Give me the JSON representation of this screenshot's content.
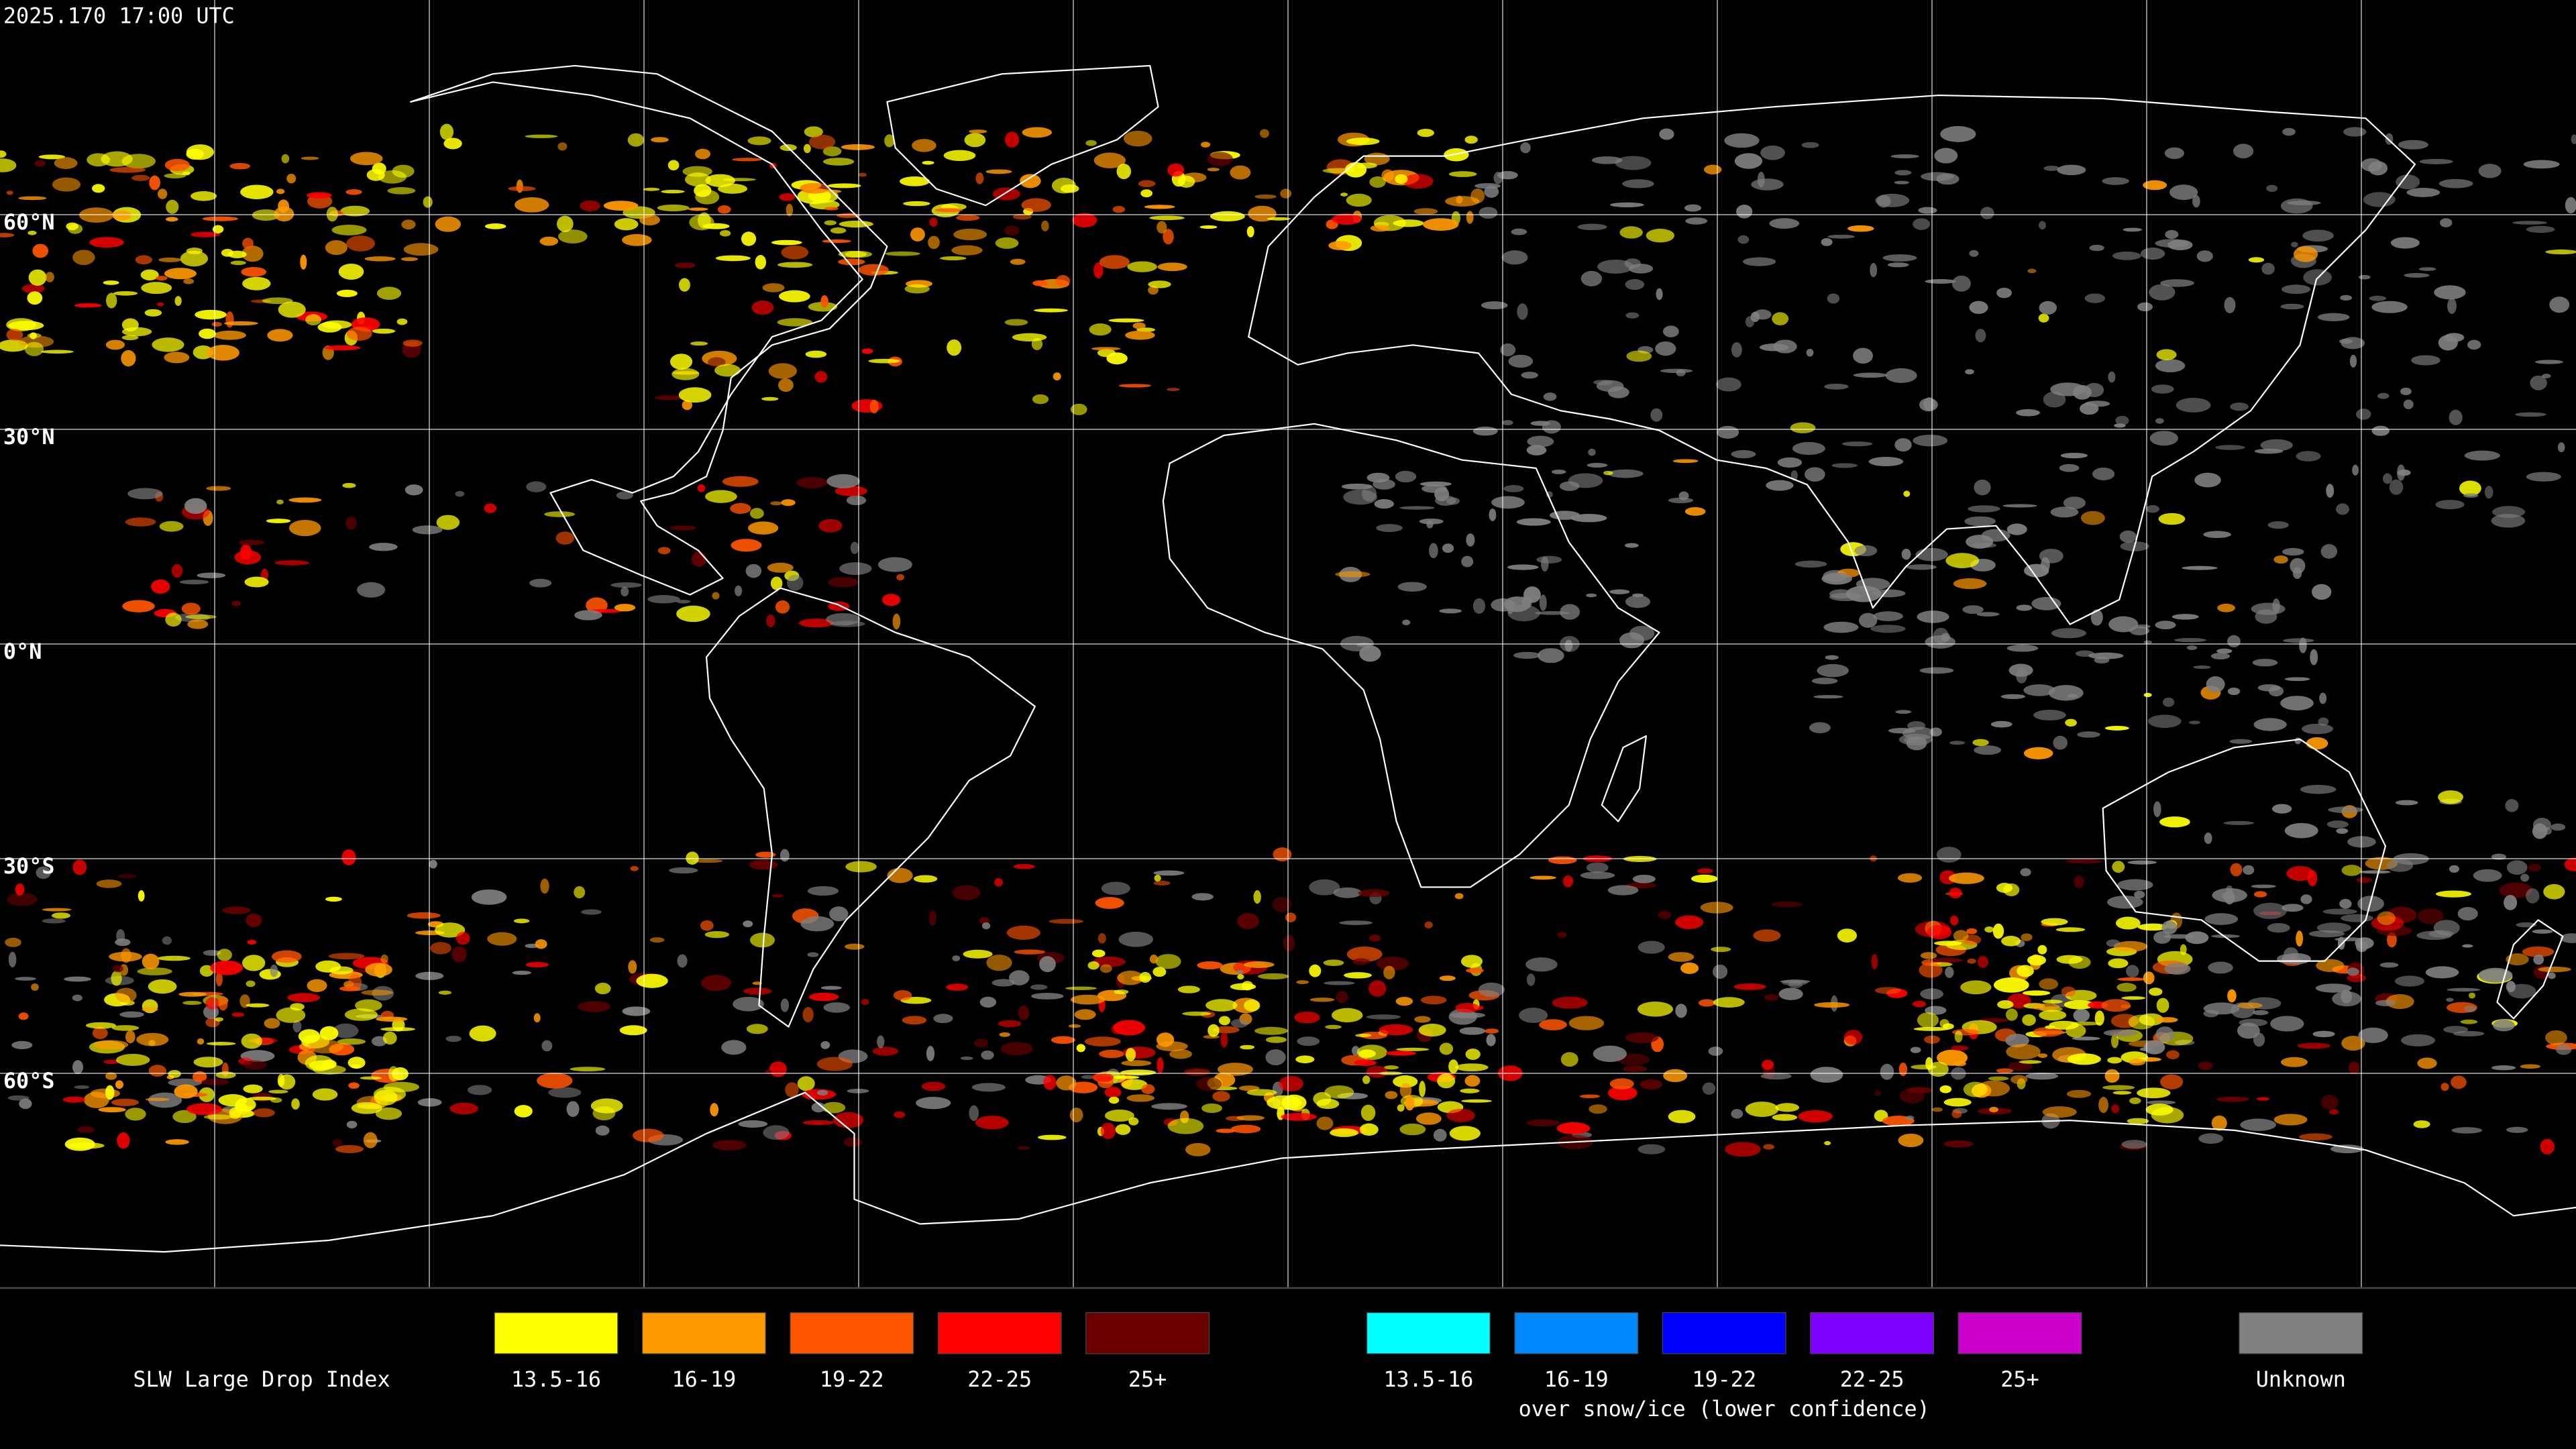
{
  "title": "2025.170 17:00 UTC",
  "latitude_labels": [
    "60°N",
    "30°N",
    "0°N",
    "30°S",
    "60°S"
  ],
  "legend": {
    "title": "SLW Large Drop Index",
    "groups": [
      {
        "items": [
          {
            "label": "13.5-16",
            "color": "#ffff00"
          },
          {
            "label": "16-19",
            "color": "#ff9900"
          },
          {
            "label": "19-22",
            "color": "#ff5500"
          },
          {
            "label": "22-25",
            "color": "#ff0000"
          },
          {
            "label": "25+",
            "color": "#6b0000"
          }
        ]
      },
      {
        "items": [
          {
            "label": "13.5-16",
            "color": "#00ffff"
          },
          {
            "label": "16-19",
            "color": "#0088ff"
          },
          {
            "label": "19-22",
            "color": "#0000ff"
          },
          {
            "label": "22-25",
            "color": "#8000ff"
          },
          {
            "label": "25+",
            "color": "#cc00cc"
          }
        ],
        "note": "over snow/ice (lower confidence)"
      },
      {
        "items": [
          {
            "label": "Unknown",
            "color": "#808080"
          }
        ]
      }
    ]
  }
}
